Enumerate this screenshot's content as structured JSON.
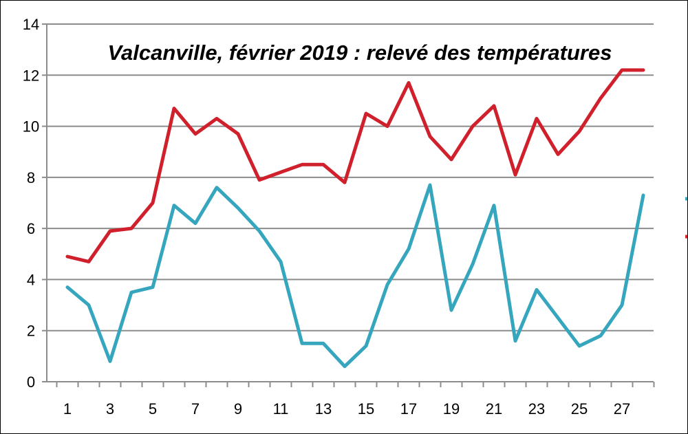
{
  "chart_data": {
    "type": "line",
    "title": "Valcanville, février 2019 : relevé des températures",
    "xlabel": "",
    "ylabel": "",
    "x": [
      1,
      2,
      3,
      4,
      5,
      6,
      7,
      8,
      9,
      10,
      11,
      12,
      13,
      14,
      15,
      16,
      17,
      18,
      19,
      20,
      21,
      22,
      23,
      24,
      25,
      26,
      27,
      28
    ],
    "x_tick_labels": [
      "1",
      "3",
      "5",
      "7",
      "9",
      "11",
      "13",
      "15",
      "17",
      "19",
      "21",
      "23",
      "25",
      "27"
    ],
    "y_tick_labels": [
      "0",
      "2",
      "4",
      "6",
      "8",
      "10",
      "12",
      "14"
    ],
    "ylim": [
      0,
      14
    ],
    "grid": true,
    "legend": "right (cut off)",
    "series": [
      {
        "color": "#d0202c",
        "values": [
          4.9,
          4.7,
          5.9,
          6.0,
          7.0,
          10.7,
          9.7,
          10.3,
          9.7,
          7.9,
          8.2,
          8.5,
          8.5,
          7.8,
          10.5,
          10.0,
          11.7,
          9.6,
          8.7,
          10.0,
          10.8,
          8.1,
          10.3,
          8.9,
          9.8,
          11.1,
          12.2,
          12.2
        ]
      },
      {
        "color": "#36a6be",
        "values": [
          3.7,
          3.0,
          0.8,
          3.5,
          3.7,
          6.9,
          6.2,
          7.6,
          6.8,
          5.9,
          4.7,
          1.5,
          1.5,
          0.6,
          1.4,
          3.8,
          5.2,
          7.7,
          2.8,
          4.6,
          6.9,
          1.6,
          3.6,
          2.5,
          1.4,
          1.8,
          3.0,
          7.3
        ]
      }
    ]
  }
}
